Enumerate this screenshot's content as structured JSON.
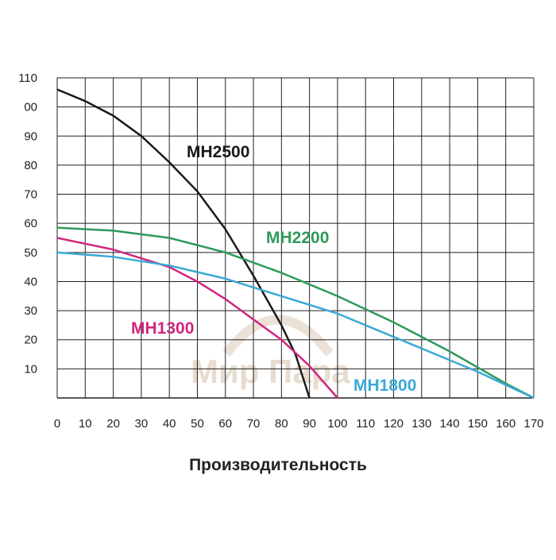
{
  "chart_data": {
    "type": "line",
    "xlabel": "Производительность",
    "watermark": "Мир Пара",
    "xlim": [
      0,
      170
    ],
    "ylim": [
      0,
      110
    ],
    "xticks": [
      0,
      10,
      20,
      30,
      40,
      50,
      60,
      70,
      80,
      90,
      100,
      110,
      120,
      130,
      140,
      150,
      160,
      170
    ],
    "yticks": [
      10,
      20,
      30,
      40,
      50,
      60,
      70,
      80,
      90,
      {
        "value": 100,
        "label": "00"
      },
      110
    ],
    "grid": true,
    "series": [
      {
        "name": "MH2500",
        "color": "#1a1a1a",
        "x": [
          0,
          10,
          20,
          30,
          40,
          50,
          60,
          70,
          80,
          85,
          90
        ],
        "values": [
          106,
          102,
          97,
          90,
          81,
          71,
          58,
          42,
          25,
          15,
          0
        ]
      },
      {
        "name": "MH2200",
        "color": "#2e9a5a",
        "x": [
          0,
          20,
          40,
          60,
          80,
          100,
          120,
          140,
          160,
          170
        ],
        "values": [
          58.5,
          57.5,
          55,
          50,
          43,
          35,
          26,
          16,
          5,
          0
        ]
      },
      {
        "name": "MH1300",
        "color": "#d0267f",
        "x": [
          0,
          20,
          40,
          50,
          60,
          70,
          80,
          90,
          100
        ],
        "values": [
          55,
          51,
          45,
          40,
          34,
          27,
          20,
          11,
          0
        ]
      },
      {
        "name": "MH1800",
        "color": "#3aa9d6",
        "x": [
          0,
          20,
          40,
          60,
          80,
          100,
          120,
          140,
          150,
          170
        ],
        "values": [
          50,
          48.5,
          45.5,
          41,
          35,
          29,
          21,
          13,
          9,
          0
        ]
      }
    ]
  }
}
